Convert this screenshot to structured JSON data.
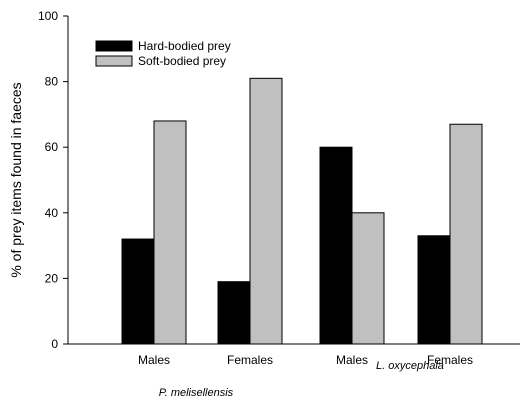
{
  "chart_data": {
    "type": "bar",
    "ylabel": "% of prey items found in faeces",
    "xlabel": "",
    "ylim": [
      0,
      100
    ],
    "yticks": [
      0,
      20,
      40,
      60,
      80,
      100
    ],
    "categories": [
      "Males",
      "Females",
      "Males",
      "Females"
    ],
    "species": [
      {
        "label": "P. melisellensis",
        "categories": [
          "Males",
          "Females"
        ]
      },
      {
        "label": "L. oxycephala",
        "categories": [
          "Males",
          "Females"
        ]
      }
    ],
    "series": [
      {
        "name": "Hard-bodied prey",
        "color": "#000000",
        "values": [
          32,
          19,
          60,
          33
        ]
      },
      {
        "name": "Soft-bodied prey",
        "color": "#c0c0c0",
        "values": [
          68,
          81,
          40,
          67
        ]
      }
    ],
    "legend_placement": "top-left",
    "grid": false
  }
}
